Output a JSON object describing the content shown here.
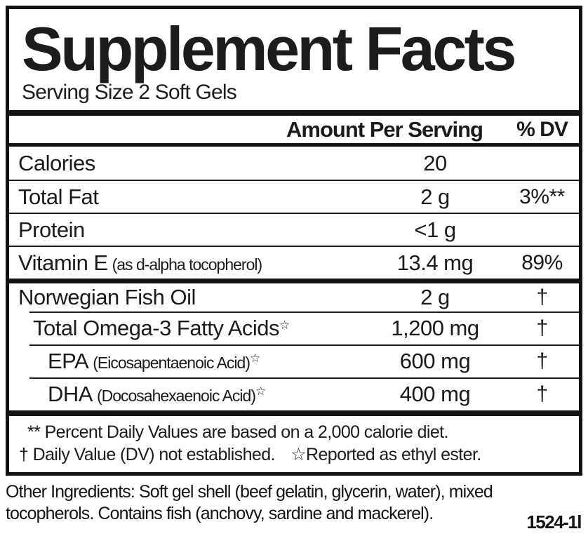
{
  "header": {
    "title": "Supplement Facts",
    "serving_size": "Serving Size 2 Soft Gels"
  },
  "columns": {
    "amount": "Amount Per Serving",
    "dv": "% DV"
  },
  "rows": [
    {
      "name": "Calories",
      "note": "",
      "star": "",
      "amount": "20",
      "dv": "",
      "indent": 0,
      "divider": "none"
    },
    {
      "name": "Total Fat",
      "note": "",
      "star": "",
      "amount": "2 g",
      "dv": "3%**",
      "indent": 0,
      "divider": "thin"
    },
    {
      "name": "Protein",
      "note": "",
      "star": "",
      "amount": "<1 g",
      "dv": "",
      "indent": 0,
      "divider": "thin"
    },
    {
      "name": "Vitamin E",
      "note": "(as d-alpha tocopherol)",
      "star": "",
      "amount": "13.4 mg",
      "dv": "89%",
      "indent": 0,
      "divider": "thin"
    },
    {
      "name": "Norwegian Fish Oil",
      "note": "",
      "star": "",
      "amount": "2 g",
      "dv": "†",
      "indent": 0,
      "divider": "thick"
    },
    {
      "name": "Total Omega-3 Fatty Acids",
      "note": "",
      "star": "☆",
      "amount": "1,200 mg",
      "dv": "†",
      "indent": 1,
      "divider": "thin-indent"
    },
    {
      "name": "EPA",
      "note": "(Eicosapentaenoic Acid)",
      "star": "☆",
      "amount": "600 mg",
      "dv": "†",
      "indent": 2,
      "divider": "thin-indent"
    },
    {
      "name": "DHA",
      "note": "(Docosahexaenoic Acid)",
      "star": "☆",
      "amount": "400 mg",
      "dv": "†",
      "indent": 2,
      "divider": "thin-indent"
    }
  ],
  "footnotes": {
    "line1": "** Percent Daily Values are based on a 2,000 calorie diet.",
    "line2": "† Daily Value (DV) not established.",
    "line2b": "☆Reported as ethyl ester."
  },
  "other_ingredients": "Other Ingredients: Soft gel shell (beef gelatin, glycerin, water), mixed tocopherols. Contains fish (anchovy, sardine and mackerel).",
  "code": "1524-1l"
}
